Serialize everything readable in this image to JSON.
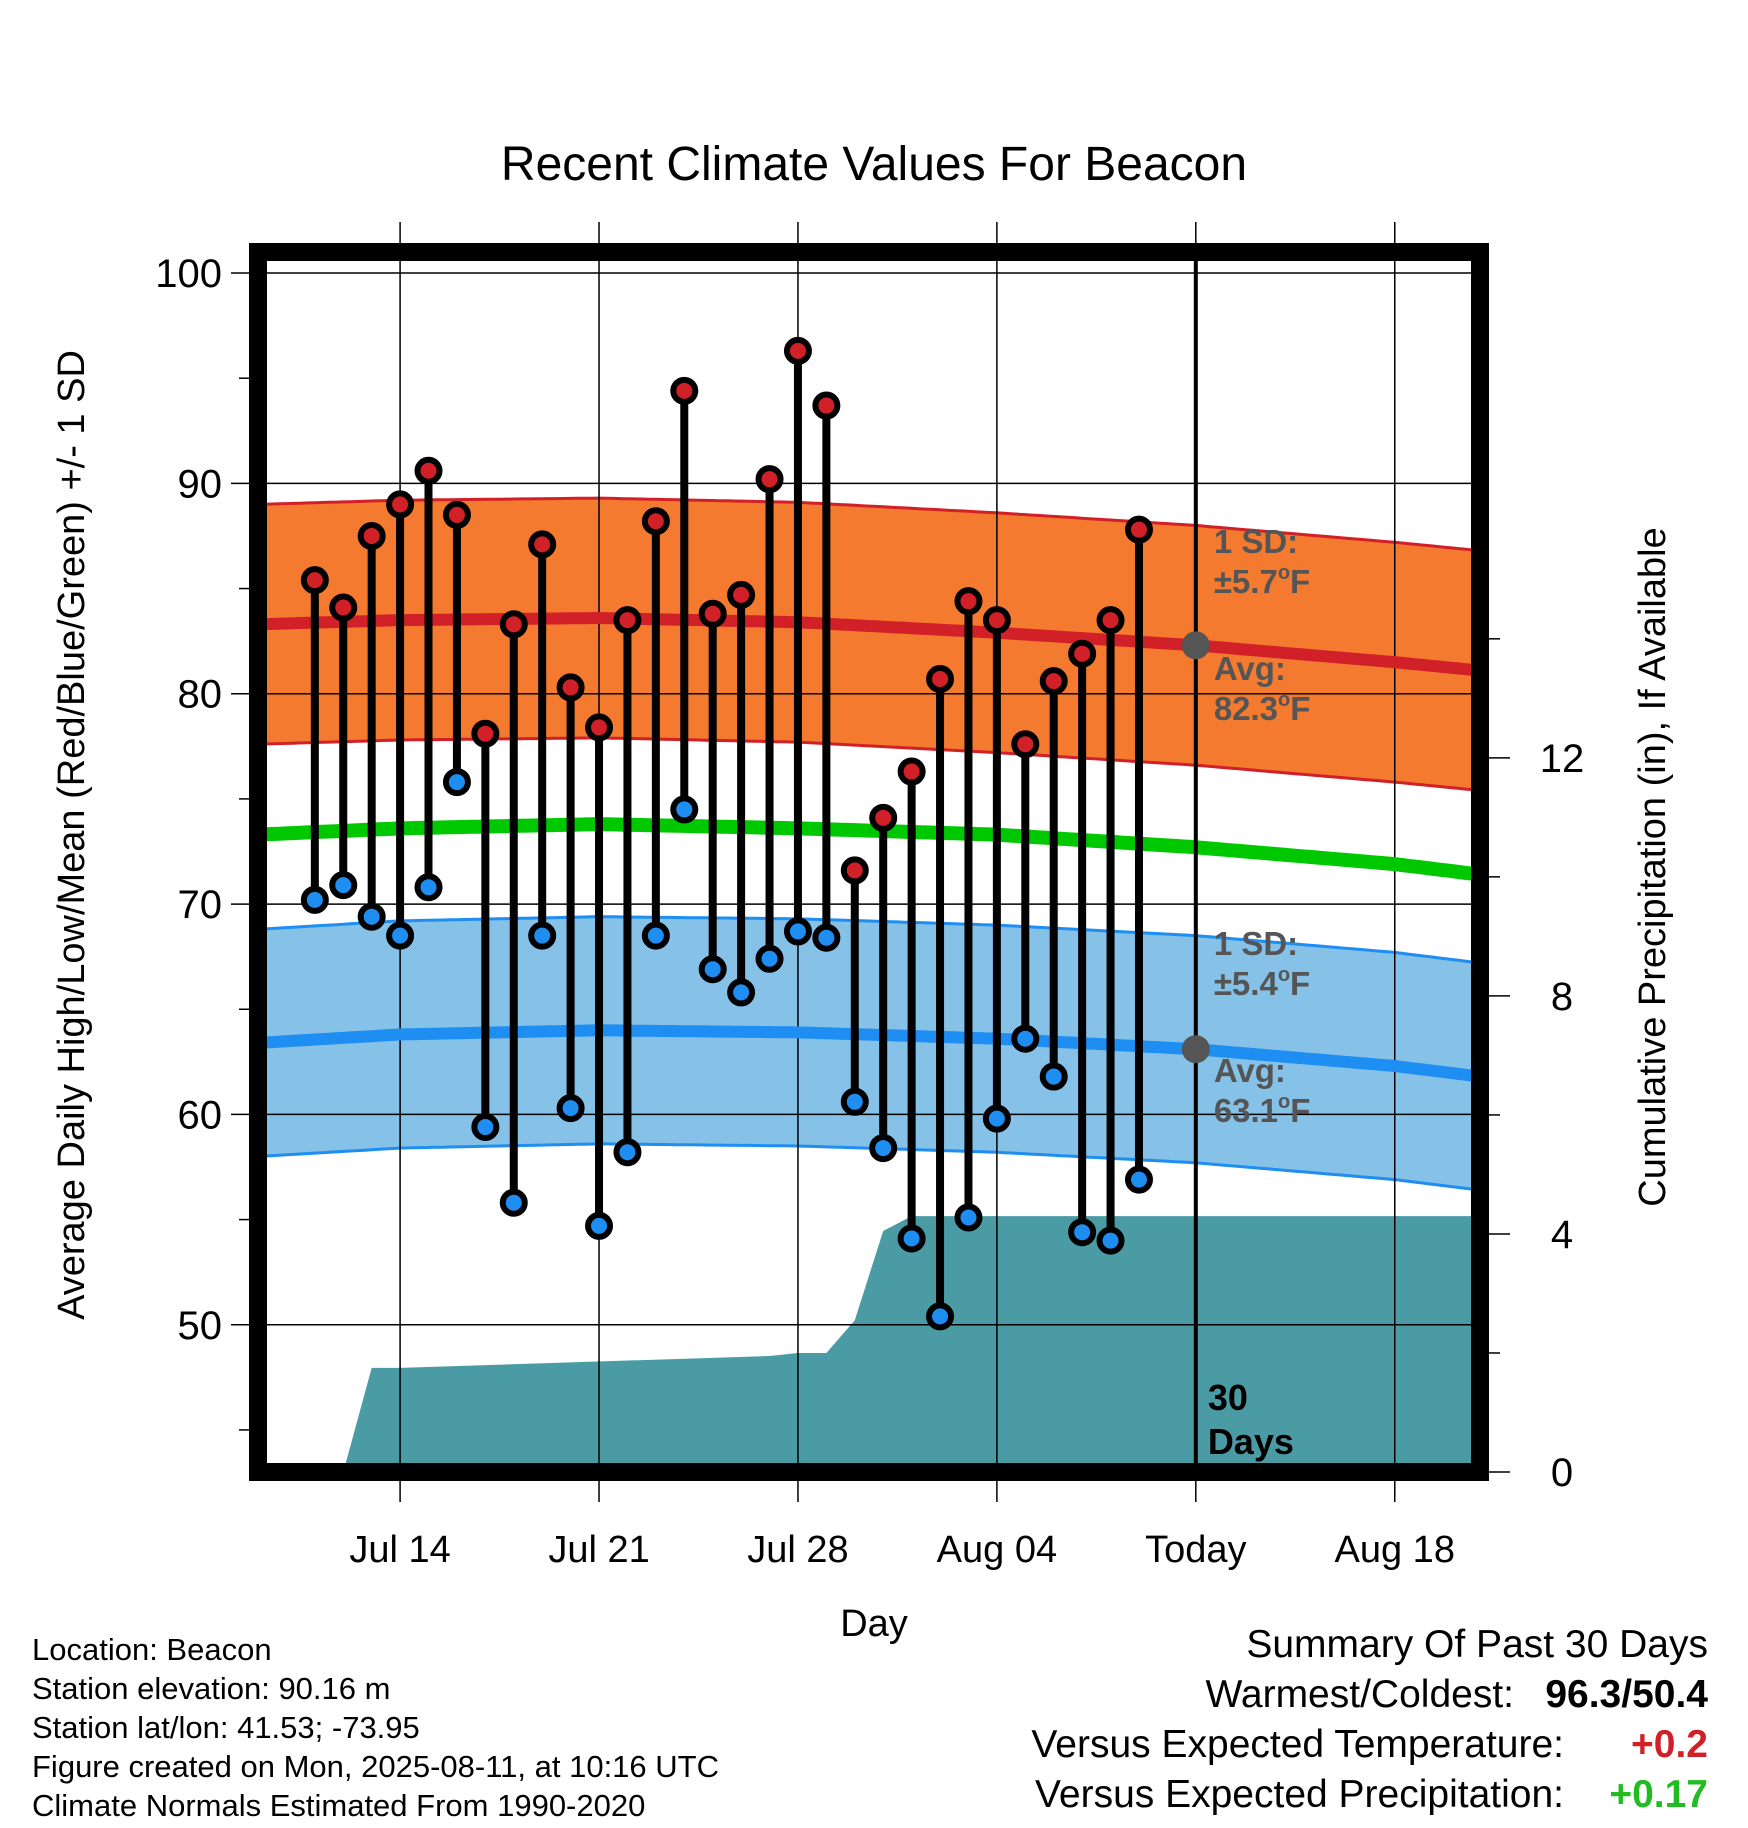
{
  "chart_data": {
    "type": "line",
    "title": "Recent Climate Values For Beacon",
    "xlabel": "Day",
    "ylabel": "Average Daily High/Low/Mean (Red/Blue/Green) +/- 1 SD",
    "y2label": "Cumulative Precipitation (in), If Available",
    "ylim": [
      43,
      101
    ],
    "y2lim": [
      0,
      20.5
    ],
    "yticks": [
      50,
      60,
      70,
      80,
      90,
      100
    ],
    "y2ticks": [
      0,
      4,
      8,
      12
    ],
    "x_range": [
      "2025-07-09",
      "2025-08-21"
    ],
    "x_tick_labels": [
      {
        "date": "2025-07-14",
        "label": "Jul 14"
      },
      {
        "date": "2025-07-21",
        "label": "Jul 21"
      },
      {
        "date": "2025-07-28",
        "label": "Jul 28"
      },
      {
        "date": "2025-08-04",
        "label": "Aug 04"
      },
      {
        "date": "2025-08-11",
        "label": "Today"
      },
      {
        "date": "2025-08-18",
        "label": "Aug 18"
      }
    ],
    "grid": true,
    "today": "2025-08-11",
    "today_label": "30 Days",
    "daily_observations": {
      "dates": [
        "2025-07-11",
        "2025-07-12",
        "2025-07-13",
        "2025-07-14",
        "2025-07-15",
        "2025-07-16",
        "2025-07-17",
        "2025-07-18",
        "2025-07-19",
        "2025-07-20",
        "2025-07-21",
        "2025-07-22",
        "2025-07-23",
        "2025-07-24",
        "2025-07-25",
        "2025-07-26",
        "2025-07-27",
        "2025-07-28",
        "2025-07-29",
        "2025-07-30",
        "2025-07-31",
        "2025-08-01",
        "2025-08-02",
        "2025-08-03",
        "2025-08-04",
        "2025-08-05",
        "2025-08-06",
        "2025-08-07",
        "2025-08-08",
        "2025-08-09",
        "2025-08-10"
      ],
      "high": [
        85.4,
        84.1,
        87.5,
        89.0,
        90.6,
        88.5,
        78.1,
        83.3,
        87.1,
        80.3,
        78.4,
        83.5,
        88.2,
        94.4,
        83.8,
        84.7,
        90.2,
        96.3,
        93.7,
        71.6,
        74.1,
        76.3,
        80.7,
        84.4,
        83.5,
        77.6,
        80.6,
        81.9,
        83.5,
        87.8,
        null
      ],
      "low": [
        70.2,
        70.9,
        69.4,
        68.5,
        70.8,
        75.8,
        59.4,
        55.8,
        68.5,
        60.3,
        54.7,
        58.2,
        68.5,
        74.5,
        66.9,
        65.8,
        67.4,
        68.7,
        68.4,
        60.6,
        58.4,
        54.1,
        50.4,
        55.1,
        59.8,
        63.6,
        61.8,
        54.4,
        54.0,
        56.9,
        null
      ]
    },
    "normals": {
      "dates": [
        "2025-07-09",
        "2025-07-14",
        "2025-07-21",
        "2025-07-28",
        "2025-08-04",
        "2025-08-11",
        "2025-08-18",
        "2025-08-21"
      ],
      "high_avg": [
        83.3,
        83.5,
        83.6,
        83.4,
        82.9,
        82.3,
        81.5,
        81.1
      ],
      "high_sd": 5.7,
      "low_avg": [
        63.4,
        63.8,
        64.0,
        63.9,
        63.6,
        63.1,
        62.3,
        61.8
      ],
      "low_sd": 5.4,
      "mean_avg": [
        73.3,
        73.6,
        73.8,
        73.6,
        73.3,
        72.7,
        71.9,
        71.4
      ]
    },
    "cumulative_precipitation": {
      "dates": [
        "2025-07-11",
        "2025-07-12",
        "2025-07-13",
        "2025-07-14",
        "2025-07-27",
        "2025-07-28",
        "2025-07-29",
        "2025-07-30",
        "2025-07-31",
        "2025-08-01",
        "2025-08-10",
        "2025-08-21"
      ],
      "values": [
        0.0,
        0.0,
        1.75,
        1.75,
        1.95,
        2.0,
        2.0,
        2.55,
        4.05,
        4.3,
        4.3,
        4.3
      ]
    },
    "annotations": {
      "high_sd": "1 SD: ±5.7°F",
      "high_avg": "Avg: 82.3°F",
      "low_sd": "1 SD: ±5.4°F",
      "low_avg": "Avg: 63.1°F"
    }
  },
  "annotation_text": {
    "high_sd_label": "1 SD:",
    "high_sd_value": "±5.7",
    "high_avg_label": "Avg:",
    "high_avg_value": "82.3",
    "low_sd_label": "1 SD:",
    "low_sd_value": "±5.4",
    "low_avg_label": "Avg:",
    "low_avg_value": "63.1",
    "degree": "o",
    "unit": "F",
    "today_days_line1": "30",
    "today_days_line2": "Days"
  },
  "footer": {
    "location": "Location: Beacon",
    "elevation": "Station elevation: 90.16 m",
    "latlon": "Station lat/lon: 41.53; -73.95",
    "created": "Figure created on Mon, 2025-08-11, at 10:16 UTC",
    "normals": "Climate Normals Estimated From 1990-2020"
  },
  "summary": {
    "title": "Summary Of Past 30 Days",
    "warm_cold_label": "Warmest/Coldest:",
    "warm_cold_value": "96.3/50.4",
    "temp_label": "Versus Expected Temperature:",
    "temp_value": "+0.2",
    "precip_label": "Versus Expected Precipitation:",
    "precip_value": "+0.17"
  },
  "colors": {
    "high_band": "#f47a30",
    "high_line": "#d12027",
    "low_band": "#86c1e8",
    "low_line": "#1f8ef2",
    "mean_line": "#00c800",
    "precip_fill": "#4a9ba4",
    "high_dot": "#d12027",
    "low_dot": "#1f8ef2",
    "annotation": "#555555",
    "temp_diff": "#d12027",
    "precip_diff": "#22bb22"
  }
}
